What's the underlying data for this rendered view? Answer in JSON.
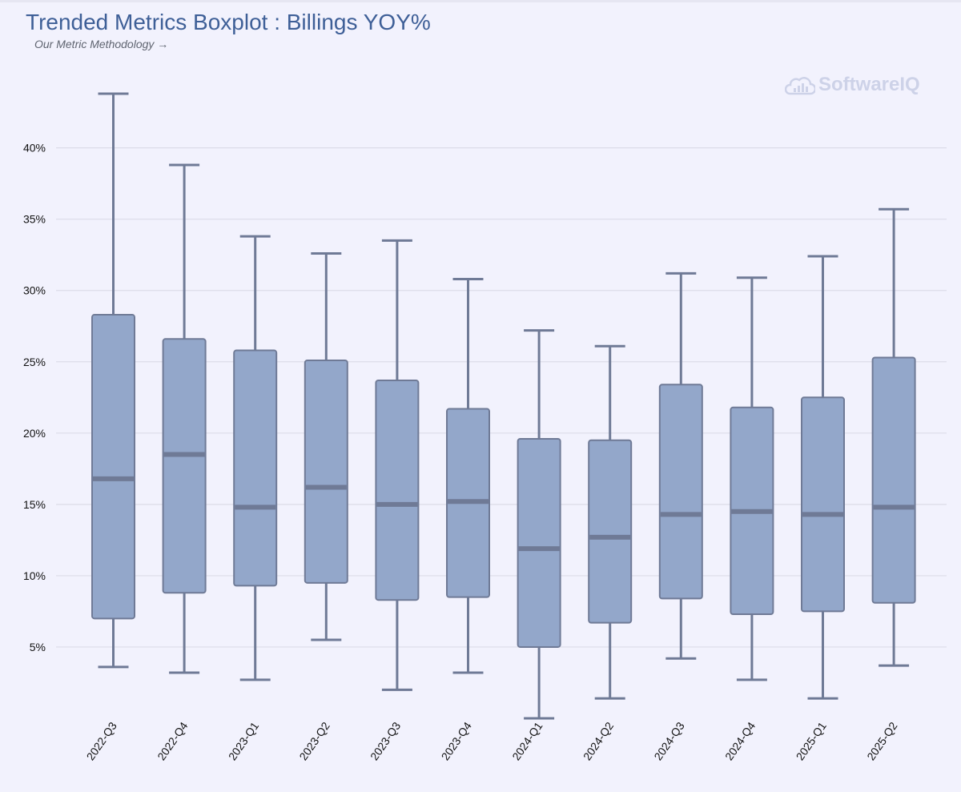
{
  "header": {
    "title": "Trended Metrics Boxplot : Billings YOY%",
    "methodology_link": "Our Metric Methodology →"
  },
  "watermark": {
    "text": "SoftwareIQ",
    "icon": "cloud-chart-icon"
  },
  "colors": {
    "box_fill": "#93a7ca",
    "box_stroke": "#6f7a96",
    "grid": "#dcdce8",
    "title": "#3e5f97",
    "watermark": "#cdd2e8"
  },
  "chart_data": {
    "type": "boxplot",
    "title": "Trended Metrics Boxplot : Billings YOY%",
    "xlabel": "",
    "ylabel": "",
    "y_ticks": [
      5,
      10,
      15,
      20,
      25,
      30,
      35,
      40
    ],
    "y_tick_format": "{v}%",
    "ylim": [
      0,
      47
    ],
    "grid": true,
    "categories": [
      "2022-Q3",
      "2022-Q4",
      "2023-Q1",
      "2023-Q2",
      "2023-Q3",
      "2023-Q4",
      "2024-Q1",
      "2024-Q2",
      "2024-Q3",
      "2024-Q4",
      "2025-Q1",
      "2025-Q2"
    ],
    "series": [
      {
        "name": "2022-Q3",
        "min": 3.6,
        "q1": 7.0,
        "median": 16.8,
        "q3": 28.3,
        "max": 43.8
      },
      {
        "name": "2022-Q4",
        "min": 3.2,
        "q1": 8.8,
        "median": 18.5,
        "q3": 26.6,
        "max": 38.8
      },
      {
        "name": "2023-Q1",
        "min": 2.7,
        "q1": 9.3,
        "median": 14.8,
        "q3": 25.8,
        "max": 33.8
      },
      {
        "name": "2023-Q2",
        "min": 5.5,
        "q1": 9.5,
        "median": 16.2,
        "q3": 25.1,
        "max": 32.6
      },
      {
        "name": "2023-Q3",
        "min": 2.0,
        "q1": 8.3,
        "median": 15.0,
        "q3": 23.7,
        "max": 33.5
      },
      {
        "name": "2023-Q4",
        "min": 3.2,
        "q1": 8.5,
        "median": 15.2,
        "q3": 21.7,
        "max": 30.8
      },
      {
        "name": "2024-Q1",
        "min": 0.0,
        "q1": 5.0,
        "median": 11.9,
        "q3": 19.6,
        "max": 27.2
      },
      {
        "name": "2024-Q2",
        "min": 1.4,
        "q1": 6.7,
        "median": 12.7,
        "q3": 19.5,
        "max": 26.1
      },
      {
        "name": "2024-Q3",
        "min": 4.2,
        "q1": 8.4,
        "median": 14.3,
        "q3": 23.4,
        "max": 31.2
      },
      {
        "name": "2024-Q4",
        "min": 2.7,
        "q1": 7.3,
        "median": 14.5,
        "q3": 21.8,
        "max": 30.9
      },
      {
        "name": "2025-Q1",
        "min": 1.4,
        "q1": 7.5,
        "median": 14.3,
        "q3": 22.5,
        "max": 32.4
      },
      {
        "name": "2025-Q2",
        "min": 3.7,
        "q1": 8.1,
        "median": 14.8,
        "q3": 25.3,
        "max": 35.7
      }
    ]
  }
}
